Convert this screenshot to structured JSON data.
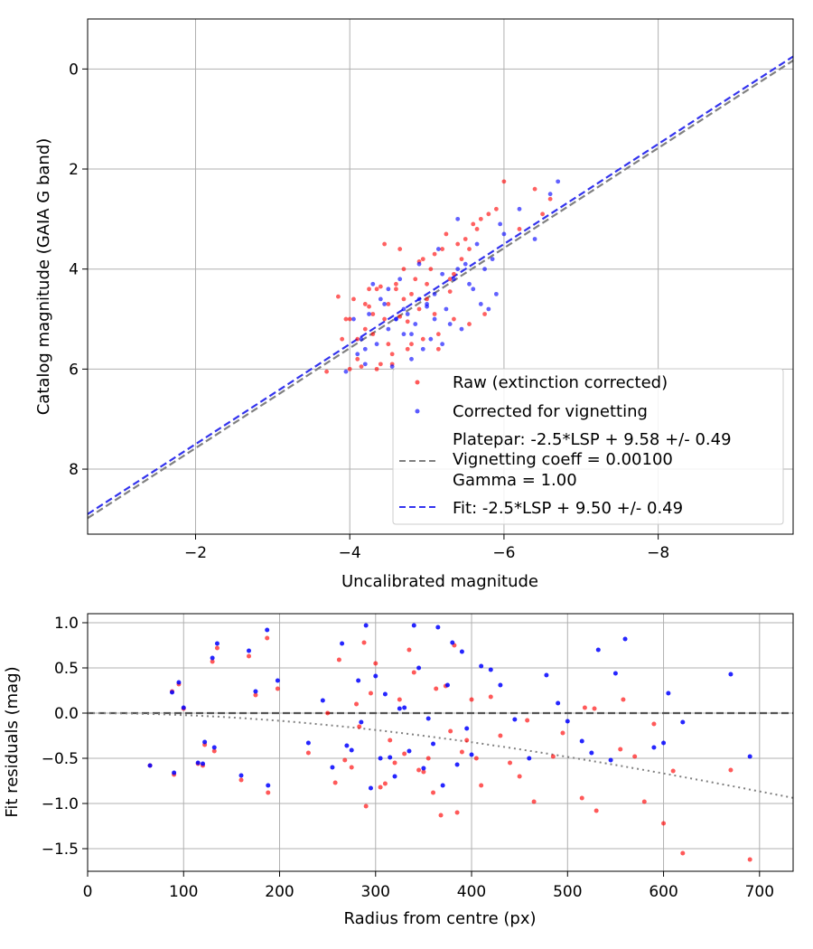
{
  "chart_data": [
    {
      "type": "scatter",
      "xlabel": "Uncalibrated magnitude",
      "ylabel": "Catalog magnitude (GAIA G band)",
      "xlim": [
        -0.6,
        -9.75
      ],
      "ylim": [
        9.3,
        -1.0
      ],
      "xaxis_inverted": true,
      "yaxis_inverted": true,
      "xticks": [
        -2,
        -4,
        -6,
        -8
      ],
      "yticks": [
        0,
        2,
        4,
        6,
        8
      ],
      "xtick_labels": [
        "−2",
        "−4",
        "−6",
        "−8"
      ],
      "ytick_labels": [
        "0",
        "2",
        "4",
        "6",
        "8"
      ],
      "grid": true,
      "legend_position": "lower-right",
      "legend": {
        "raw": "Raw (extinction corrected)",
        "corrected": "Corrected for vignetting",
        "platepar_lines": [
          "Platepar: -2.5*LSP + 9.58 +/- 0.49",
          "Vignetting coeff = 0.00100",
          "Gamma = 1.00"
        ],
        "fit": "Fit: -2.5*LSP + 9.50 +/- 0.49"
      },
      "colors": {
        "raw": "#ff0000",
        "corrected": "#0000ff",
        "platepar": "#808080",
        "fit": "#3333ee"
      },
      "lines": [
        {
          "name": "Platepar",
          "slope": 1,
          "intercept": 9.58,
          "style": "dashed",
          "color": "#808080"
        },
        {
          "name": "Fit",
          "slope": 1,
          "intercept": 9.5,
          "style": "dashed",
          "color": "#3333ee"
        }
      ],
      "series": [
        {
          "name": "Raw (extinction corrected)",
          "x": [
            -3.7,
            -3.9,
            -4.0,
            -3.85,
            -4.2,
            -4.1,
            -4.3,
            -4.0,
            -4.4,
            -4.5,
            -4.35,
            -4.6,
            -4.7,
            -4.55,
            -4.8,
            -4.9,
            -4.75,
            -5.0,
            -5.1,
            -4.95,
            -5.2,
            -5.3,
            -5.15,
            -5.4,
            -5.5,
            -5.35,
            -5.6,
            -5.7,
            -5.55,
            -5.8,
            -5.9,
            -6.0,
            -6.2,
            -6.4,
            -6.6,
            -6.5,
            -5.65,
            -5.45,
            -5.25,
            -5.05,
            -4.85,
            -4.65,
            -4.45,
            -4.25,
            -4.05,
            -4.15,
            -4.35,
            -4.55,
            -4.75,
            -4.95,
            -5.15,
            -5.35,
            -5.55,
            -5.75,
            -4.6,
            -4.5,
            -4.7,
            -4.9,
            -5.1,
            -5.3,
            -4.3,
            -4.2,
            -4.45,
            -4.8,
            -5.0,
            -4.65,
            -4.4,
            -4.1,
            -3.95,
            -4.25
          ],
          "y": [
            6.05,
            5.4,
            5.0,
            4.55,
            5.2,
            5.8,
            5.3,
            6.0,
            5.9,
            5.5,
            4.4,
            4.3,
            4.6,
            5.7,
            5.5,
            4.8,
            5.05,
            4.6,
            4.9,
            3.8,
            3.6,
            4.2,
            5.3,
            3.5,
            3.4,
            4.1,
            3.1,
            3.0,
            3.6,
            2.9,
            2.8,
            2.25,
            3.2,
            2.4,
            2.6,
            2.9,
            3.2,
            3.8,
            3.3,
            4.0,
            4.2,
            3.6,
            3.5,
            4.4,
            4.6,
            5.95,
            6.0,
            5.9,
            5.6,
            5.4,
            5.6,
            5.0,
            5.1,
            4.9,
            4.4,
            4.7,
            4.0,
            3.85,
            3.7,
            4.45,
            4.9,
            4.7,
            5.0,
            4.5,
            4.3,
            4.95,
            4.35,
            5.4,
            5.0,
            4.75
          ]
        },
        {
          "name": "Corrected for vignetting",
          "x": [
            -3.95,
            -4.1,
            -4.2,
            -4.35,
            -4.5,
            -4.6,
            -4.75,
            -4.85,
            -5.0,
            -5.1,
            -5.25,
            -5.35,
            -5.5,
            -5.6,
            -5.75,
            -5.85,
            -6.0,
            -6.2,
            -6.4,
            -6.6,
            -6.7,
            -5.9,
            -5.7,
            -5.45,
            -5.2,
            -4.95,
            -4.7,
            -4.45,
            -4.25,
            -4.05,
            -4.15,
            -4.4,
            -4.65,
            -4.9,
            -5.15,
            -5.4,
            -5.65,
            -5.95,
            -4.55,
            -4.8,
            -5.05,
            -5.3,
            -5.55,
            -5.8,
            -4.3,
            -4.5,
            -4.9,
            -5.2,
            -4.7,
            -5.0,
            -4.6,
            -4.2,
            -4.8,
            -5.1,
            -5.4
          ],
          "y": [
            6.05,
            5.7,
            5.9,
            5.5,
            5.2,
            5.0,
            4.9,
            5.1,
            4.7,
            4.5,
            4.8,
            4.2,
            3.9,
            4.4,
            4.0,
            3.8,
            3.3,
            2.8,
            3.4,
            2.5,
            2.25,
            4.5,
            4.7,
            5.2,
            5.5,
            5.6,
            5.3,
            4.7,
            4.9,
            5.0,
            5.4,
            4.6,
            4.2,
            3.9,
            3.6,
            3.0,
            3.5,
            3.1,
            5.95,
            5.8,
            5.4,
            5.1,
            4.3,
            4.8,
            4.3,
            4.4,
            4.6,
            4.1,
            4.8,
            4.75,
            5.0,
            5.6,
            5.3,
            5.0,
            4.0
          ]
        }
      ]
    },
    {
      "type": "scatter",
      "xlabel": "Radius from centre (px)",
      "ylabel": "Fit residuals (mag)",
      "xlim": [
        0,
        735
      ],
      "ylim": [
        -1.75,
        1.1
      ],
      "xticks": [
        0,
        100,
        200,
        300,
        400,
        500,
        600,
        700
      ],
      "yticks": [
        1.0,
        0.5,
        0.0,
        -0.5,
        -1.0,
        -1.5
      ],
      "xtick_labels": [
        "0",
        "100",
        "200",
        "300",
        "400",
        "500",
        "600",
        "700"
      ],
      "ytick_labels": [
        "1.0",
        "0.5",
        "0.0",
        "−0.5",
        "−1.0",
        "−1.5"
      ],
      "grid": true,
      "reference_line": {
        "y": 0,
        "style": "dashed",
        "color": "#555555"
      },
      "vignetting_curve": {
        "coeff": 0.001,
        "style": "dotted",
        "color": "#808080"
      },
      "series": [
        {
          "name": "Raw (extinction corrected)",
          "color": "#ff0000",
          "x": [
            65,
            88,
            90,
            95,
            100,
            115,
            120,
            122,
            130,
            132,
            135,
            160,
            168,
            175,
            187,
            188,
            198,
            230,
            250,
            258,
            262,
            268,
            275,
            280,
            283,
            288,
            290,
            295,
            300,
            305,
            310,
            315,
            320,
            325,
            330,
            335,
            340,
            345,
            350,
            355,
            360,
            363,
            368,
            373,
            378,
            382,
            385,
            390,
            395,
            400,
            405,
            410,
            420,
            430,
            440,
            450,
            458,
            465,
            485,
            495,
            515,
            518,
            528,
            530,
            555,
            558,
            570,
            580,
            590,
            600,
            610,
            620,
            670,
            690
          ],
          "y": [
            -0.58,
            0.24,
            -0.68,
            0.32,
            0.05,
            -0.56,
            -0.58,
            -0.35,
            0.57,
            -0.42,
            0.72,
            -0.74,
            0.63,
            0.2,
            0.83,
            -0.88,
            0.27,
            -0.44,
            0.0,
            -0.77,
            0.59,
            -0.52,
            -0.6,
            0.1,
            -0.15,
            0.78,
            -1.03,
            0.22,
            0.55,
            -0.82,
            -0.78,
            -0.3,
            -0.55,
            0.15,
            -0.45,
            0.7,
            0.45,
            -0.63,
            -0.65,
            -0.5,
            -0.88,
            0.27,
            -1.13,
            0.3,
            -0.2,
            0.75,
            -1.1,
            -0.43,
            -0.3,
            0.15,
            -0.5,
            -0.8,
            0.18,
            -0.25,
            -0.55,
            -0.7,
            -0.08,
            -0.98,
            -0.48,
            -0.22,
            -0.94,
            0.06,
            0.05,
            -1.08,
            -0.4,
            0.15,
            -0.48,
            -0.98,
            -0.12,
            -1.22,
            -0.64,
            -1.55,
            -0.63,
            -1.62
          ]
        },
        {
          "name": "Corrected for vignetting",
          "color": "#0000ff",
          "x": [
            65,
            88,
            90,
            95,
            100,
            115,
            120,
            122,
            130,
            132,
            135,
            160,
            168,
            175,
            187,
            188,
            198,
            230,
            245,
            255,
            265,
            270,
            275,
            282,
            285,
            290,
            295,
            300,
            305,
            310,
            315,
            320,
            325,
            330,
            335,
            340,
            345,
            350,
            355,
            360,
            365,
            370,
            375,
            380,
            385,
            390,
            395,
            400,
            410,
            420,
            430,
            445,
            460,
            478,
            490,
            500,
            515,
            525,
            532,
            545,
            550,
            560,
            590,
            600,
            605,
            620,
            670,
            690
          ],
          "y": [
            -0.58,
            0.23,
            -0.66,
            0.34,
            0.06,
            -0.55,
            -0.56,
            -0.32,
            0.61,
            -0.38,
            0.77,
            -0.69,
            0.69,
            0.24,
            0.92,
            -0.8,
            0.36,
            -0.33,
            0.14,
            -0.6,
            0.77,
            -0.36,
            -0.41,
            0.36,
            -0.1,
            0.97,
            -0.83,
            0.41,
            -0.5,
            0.21,
            -0.49,
            -0.7,
            0.05,
            0.06,
            -0.42,
            0.97,
            0.5,
            -0.61,
            -0.06,
            -0.34,
            0.95,
            -0.8,
            0.31,
            0.78,
            -0.57,
            0.68,
            -0.17,
            -0.46,
            0.52,
            0.48,
            0.31,
            -0.07,
            -0.5,
            0.42,
            0.11,
            -0.09,
            -0.31,
            -0.44,
            0.7,
            -0.52,
            0.44,
            0.82,
            -0.38,
            -0.33,
            0.22,
            -0.1,
            0.43,
            -0.48
          ]
        }
      ]
    }
  ]
}
